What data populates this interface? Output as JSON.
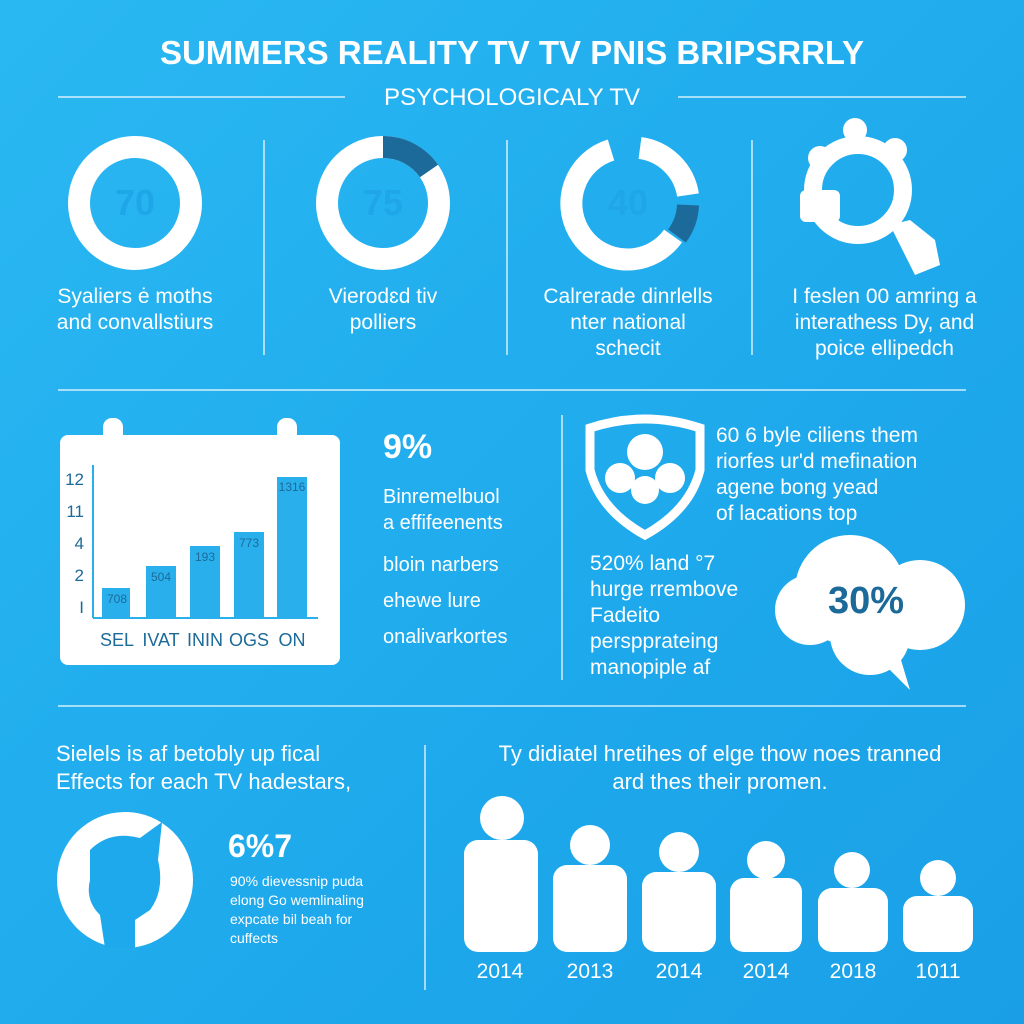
{
  "header": {
    "title": "SUMMERS REALITY TV TV PNIS BRIPSRRLY",
    "subtitle": "PSYCHOLOGICALY TV"
  },
  "stats": [
    {
      "value": "70",
      "lines": [
        "Syaliers ė moths",
        "and convallstiurs"
      ]
    },
    {
      "value": "75",
      "lines": [
        "Vierodɛd tiv",
        "polliers"
      ]
    },
    {
      "value": "40",
      "lines": [
        "Calrerade dinrlells",
        "nter national",
        "schecit"
      ]
    },
    {
      "lines": [
        "I feslen 00 amring a",
        "interathess Dy, and",
        "poice ellipedch"
      ]
    }
  ],
  "calendar_chart": {
    "yticks": [
      "12",
      "11",
      "4",
      "2",
      "I"
    ],
    "categories": [
      "SEL",
      "IVAT",
      "ININ",
      "OGS",
      "ON"
    ],
    "bar_labels": [
      "708",
      "504",
      "193",
      "773",
      "1316"
    ]
  },
  "list": {
    "headline": "9%",
    "items": [
      "Binremelbuol",
      "a effifeenents",
      "bloin narbers",
      "ehewe lure",
      "onalivarkortes"
    ]
  },
  "shield_text": [
    "60 6 byle ciliens them",
    "riorfes ur'd mefination",
    "agene bong yead",
    "of lacations top"
  ],
  "side_text": [
    "520% land °7",
    "hurge rrembove",
    "Fadeito",
    "perspprateing",
    "manopiple af"
  ],
  "cloud": "30%",
  "bottom_left": {
    "heading": [
      "Sielels is af betobly up fical",
      "Effects for each TV hadestars,"
    ],
    "stat": "6%7",
    "lines": [
      "90% dievessnip puda",
      "elong Go wemlinaling",
      "expcate bil beah for",
      "cuffects"
    ]
  },
  "bottom_right": {
    "heading": [
      "Ty didiatel hretihes of elge thow noes tranned",
      "ard thes their promen."
    ],
    "years": [
      "2014",
      "2013",
      "2014",
      "2014",
      "2018",
      "1011"
    ]
  }
}
